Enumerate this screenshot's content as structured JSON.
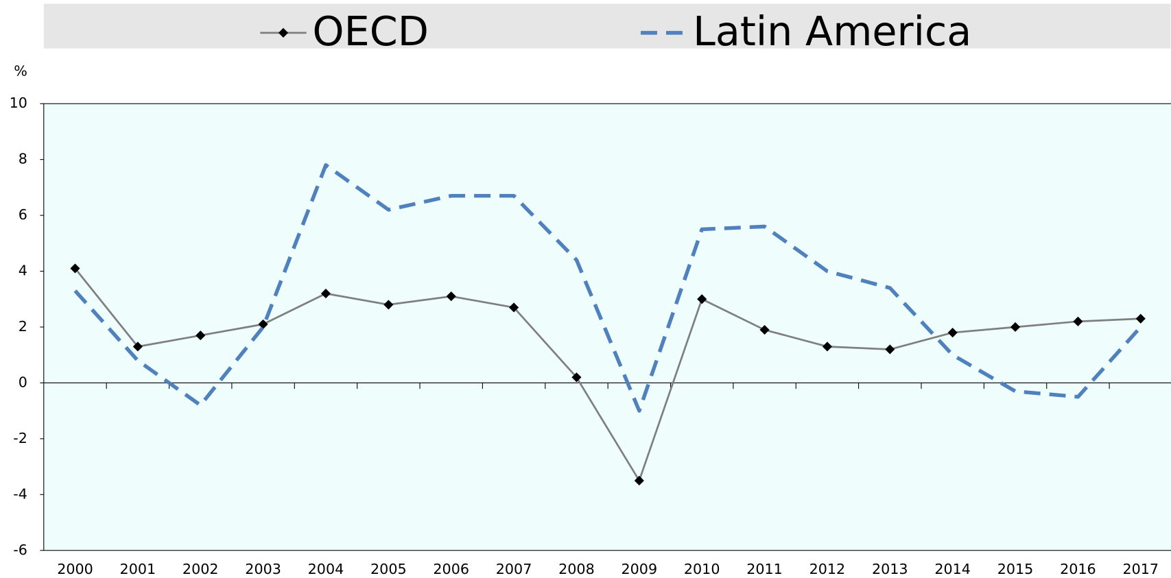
{
  "chart_data": {
    "type": "line",
    "y_label": "%",
    "categories": [
      "2000",
      "2001",
      "2002",
      "2003",
      "2004",
      "2005",
      "2006",
      "2007",
      "2008",
      "2009",
      "2010",
      "2011",
      "2012",
      "2013",
      "2014",
      "2015",
      "2016",
      "2017"
    ],
    "series": [
      {
        "name": "OECD",
        "color": "#7f7f7f",
        "marker_color": "#000000",
        "marker": "diamond",
        "dash": false,
        "values": [
          4.1,
          1.3,
          1.7,
          2.1,
          3.2,
          2.8,
          3.1,
          2.7,
          0.2,
          -3.5,
          3.0,
          1.9,
          1.3,
          1.2,
          1.8,
          2.0,
          2.2,
          2.3
        ]
      },
      {
        "name": "Latin America",
        "color": "#4f81bd",
        "dash": true,
        "values": [
          3.3,
          0.8,
          -0.8,
          2.0,
          7.8,
          6.2,
          6.7,
          6.7,
          4.4,
          -1.0,
          5.5,
          5.6,
          4.0,
          3.4,
          1.0,
          -0.3,
          -0.5,
          2.0
        ]
      }
    ],
    "ylim": [
      -6,
      10
    ],
    "yticks": [
      -6,
      -4,
      -2,
      0,
      2,
      4,
      6,
      8,
      10
    ],
    "legend": "top",
    "grid": false
  }
}
